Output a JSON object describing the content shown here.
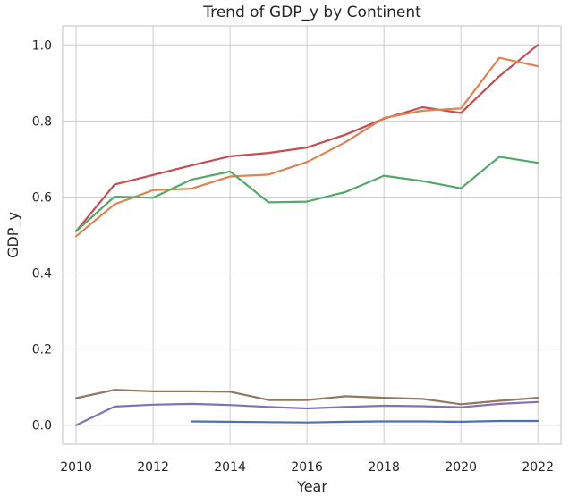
{
  "chart_data": {
    "type": "line",
    "title": "Trend of GDP_y by Continent",
    "xlabel": "Year",
    "ylabel": "GDP_y",
    "xlim": [
      2009.65,
      2022.6
    ],
    "ylim": [
      -0.05,
      1.05
    ],
    "xticks": [
      "2010",
      "2012",
      "2014",
      "2016",
      "2018",
      "2020",
      "2022"
    ],
    "yticks": [
      "0.0",
      "0.2",
      "0.4",
      "0.6",
      "0.8",
      "1.0"
    ],
    "grid": true,
    "series": [
      {
        "color": "#c44e52",
        "points": [
          [
            2010,
            0.51
          ],
          [
            2011,
            0.633
          ],
          [
            2012,
            0.658
          ],
          [
            2013,
            0.683
          ],
          [
            2014,
            0.707
          ],
          [
            2015,
            0.716
          ],
          [
            2016,
            0.73
          ],
          [
            2017,
            0.764
          ],
          [
            2018,
            0.806
          ],
          [
            2019,
            0.836
          ],
          [
            2020,
            0.821
          ],
          [
            2021,
            0.918
          ],
          [
            2022,
            1.0
          ]
        ]
      },
      {
        "color": "#dd8452",
        "points": [
          [
            2010,
            0.497
          ],
          [
            2011,
            0.581
          ],
          [
            2012,
            0.618
          ],
          [
            2013,
            0.622
          ],
          [
            2014,
            0.654
          ],
          [
            2015,
            0.659
          ],
          [
            2016,
            0.692
          ],
          [
            2017,
            0.744
          ],
          [
            2018,
            0.808
          ],
          [
            2019,
            0.827
          ],
          [
            2020,
            0.833
          ],
          [
            2021,
            0.966
          ],
          [
            2022,
            0.944
          ]
        ]
      },
      {
        "color": "#55a868",
        "points": [
          [
            2010,
            0.51
          ],
          [
            2011,
            0.601
          ],
          [
            2012,
            0.598
          ],
          [
            2013,
            0.646
          ],
          [
            2014,
            0.667
          ],
          [
            2015,
            0.586
          ],
          [
            2016,
            0.588
          ],
          [
            2017,
            0.613
          ],
          [
            2018,
            0.656
          ],
          [
            2019,
            0.642
          ],
          [
            2020,
            0.623
          ],
          [
            2021,
            0.706
          ],
          [
            2022,
            0.69
          ]
        ]
      },
      {
        "color": "#937860",
        "points": [
          [
            2010,
            0.071
          ],
          [
            2011,
            0.093
          ],
          [
            2012,
            0.089
          ],
          [
            2013,
            0.089
          ],
          [
            2014,
            0.088
          ],
          [
            2015,
            0.066
          ],
          [
            2016,
            0.066
          ],
          [
            2017,
            0.076
          ],
          [
            2018,
            0.072
          ],
          [
            2019,
            0.069
          ],
          [
            2020,
            0.055
          ],
          [
            2021,
            0.064
          ],
          [
            2022,
            0.072
          ]
        ]
      },
      {
        "color": "#8172b3",
        "points": [
          [
            2010,
            0.0
          ],
          [
            2011,
            0.049
          ],
          [
            2012,
            0.054
          ],
          [
            2013,
            0.056
          ],
          [
            2014,
            0.053
          ],
          [
            2015,
            0.048
          ],
          [
            2016,
            0.044
          ],
          [
            2017,
            0.048
          ],
          [
            2018,
            0.051
          ],
          [
            2019,
            0.05
          ],
          [
            2020,
            0.047
          ],
          [
            2021,
            0.056
          ],
          [
            2022,
            0.061
          ]
        ]
      },
      {
        "color": "#4c72b0",
        "points": [
          [
            2013,
            0.01
          ],
          [
            2014,
            0.009
          ],
          [
            2015,
            0.008
          ],
          [
            2016,
            0.007
          ],
          [
            2017,
            0.009
          ],
          [
            2018,
            0.01
          ],
          [
            2019,
            0.01
          ],
          [
            2020,
            0.009
          ],
          [
            2021,
            0.011
          ],
          [
            2022,
            0.011
          ]
        ]
      }
    ]
  }
}
